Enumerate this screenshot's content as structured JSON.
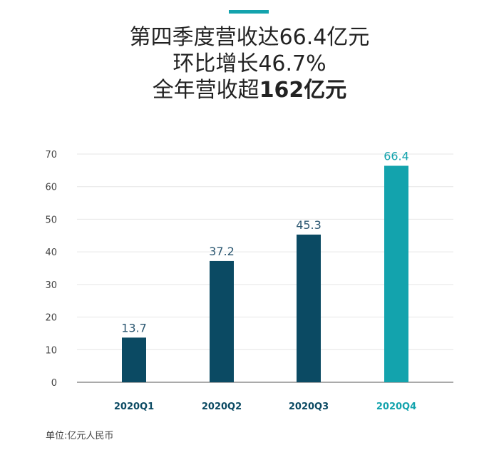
{
  "header": {
    "title_lines": [
      {
        "text": "第四季度营收达66.4亿元",
        "bold": ""
      },
      {
        "text": "环比增长46.7%",
        "bold": ""
      },
      {
        "text": "全年营收超",
        "bold": "162亿元"
      }
    ]
  },
  "colors": {
    "accent": "#13a3ad",
    "bar_dark": "#0b4a63",
    "bar_highlight": "#13a3ad",
    "grid": "#e6e6e6",
    "axis": "#555555",
    "tick_text": "#444444"
  },
  "chart_data": {
    "type": "bar",
    "categories": [
      "2020Q1",
      "2020Q2",
      "2020Q3",
      "2020Q4"
    ],
    "values": [
      13.7,
      37.2,
      45.3,
      66.4
    ],
    "value_labels": [
      "13.7",
      "37.2",
      "45.3",
      "66.4"
    ],
    "highlight_index": 3,
    "ylim": [
      0,
      70
    ],
    "yticks": [
      0,
      10,
      20,
      30,
      40,
      50,
      60,
      70
    ],
    "grid": true,
    "xlabel": "",
    "ylabel": ""
  },
  "footnote": "单位:亿元人民币"
}
